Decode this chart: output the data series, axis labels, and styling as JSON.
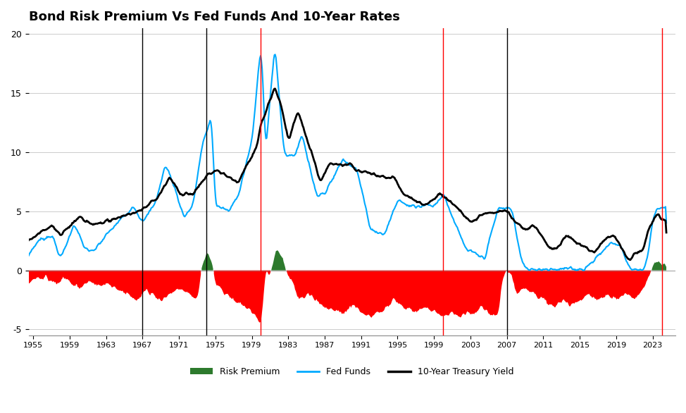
{
  "title": "Bond Risk Premium Vs Fed Funds And 10-Year Rates",
  "title_fontsize": 13,
  "title_fontweight": "bold",
  "xlim": [
    1954.5,
    2025.5
  ],
  "ylim": [
    -5.5,
    20.5
  ],
  "yticks": [
    -5,
    0,
    5,
    10,
    15,
    20
  ],
  "xticks": [
    1955,
    1959,
    1963,
    1967,
    1971,
    1975,
    1979,
    1983,
    1987,
    1991,
    1995,
    1999,
    2003,
    2007,
    2011,
    2015,
    2019,
    2023
  ],
  "vlines_red": [
    1980,
    2000,
    2024
  ],
  "vlines_black": [
    1967,
    1974,
    2007
  ],
  "background": "#ffffff",
  "grid_color": "#cccccc",
  "fed_funds_color": "#00aaff",
  "treasury_color": "#000000",
  "risk_premium_pos_color": "#2d7a2d",
  "risk_premium_neg_color": "#ff0000",
  "legend_labels": [
    "Risk Premium",
    "Fed Funds",
    "10-Year Treasury Yield"
  ],
  "fed_funds_linewidth": 1.5,
  "treasury_linewidth": 2.0
}
